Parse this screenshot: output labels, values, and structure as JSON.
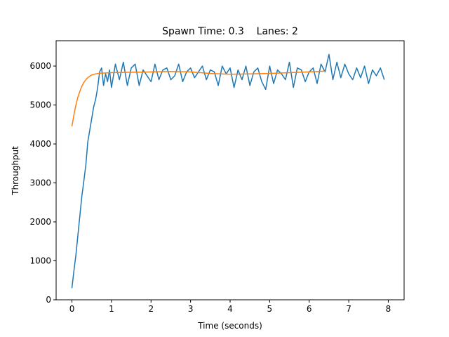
{
  "chart_data": {
    "type": "line",
    "title": "Spawn Time: 0.3    Lanes: 2",
    "xlabel": "Time (seconds)",
    "ylabel": "Throughput",
    "xlim": [
      -0.4,
      8.4
    ],
    "ylim": [
      0,
      6650
    ],
    "x_ticks": [
      0,
      1,
      2,
      3,
      4,
      5,
      6,
      7,
      8
    ],
    "x_tick_labels": [
      "0",
      "1",
      "2",
      "3",
      "4",
      "5",
      "6",
      "7",
      "8"
    ],
    "y_ticks": [
      0,
      1000,
      2000,
      3000,
      4000,
      5000,
      6000
    ],
    "y_tick_labels": [
      "0",
      "1000",
      "2000",
      "3000",
      "4000",
      "5000",
      "6000"
    ],
    "grid": false,
    "colors": {
      "throughput": "#1f77b4",
      "fit": "#ff7f0e"
    },
    "series": [
      {
        "key": "throughput",
        "x": [
          0.0,
          0.05,
          0.1,
          0.15,
          0.2,
          0.25,
          0.3,
          0.35,
          0.4,
          0.45,
          0.5,
          0.55,
          0.6,
          0.65,
          0.7,
          0.75,
          0.8,
          0.85,
          0.9,
          0.95,
          1.0,
          1.1,
          1.2,
          1.3,
          1.4,
          1.5,
          1.6,
          1.7,
          1.8,
          1.9,
          2.0,
          2.1,
          2.2,
          2.3,
          2.4,
          2.5,
          2.6,
          2.7,
          2.8,
          2.9,
          3.0,
          3.1,
          3.2,
          3.3,
          3.4,
          3.5,
          3.6,
          3.7,
          3.8,
          3.9,
          4.0,
          4.1,
          4.2,
          4.3,
          4.4,
          4.5,
          4.6,
          4.7,
          4.8,
          4.9,
          5.0,
          5.1,
          5.2,
          5.3,
          5.4,
          5.5,
          5.6,
          5.7,
          5.8,
          5.9,
          6.0,
          6.1,
          6.2,
          6.3,
          6.4,
          6.5,
          6.6,
          6.7,
          6.8,
          6.9,
          7.0,
          7.1,
          7.2,
          7.3,
          7.4,
          7.5,
          7.6,
          7.7,
          7.8,
          7.9
        ],
        "y": [
          300,
          750,
          1150,
          1650,
          2150,
          2650,
          3050,
          3450,
          4050,
          4350,
          4650,
          4950,
          5150,
          5450,
          5850,
          5950,
          5500,
          5800,
          5600,
          5900,
          5450,
          6050,
          5650,
          6100,
          5500,
          5950,
          6050,
          5500,
          5900,
          5750,
          5600,
          6050,
          5650,
          5900,
          5950,
          5650,
          5750,
          6050,
          5600,
          5850,
          5950,
          5700,
          5850,
          6000,
          5650,
          5900,
          5850,
          5500,
          6000,
          5800,
          5950,
          5450,
          5900,
          5650,
          6000,
          5500,
          5850,
          5950,
          5600,
          5400,
          6000,
          5550,
          5900,
          5800,
          5650,
          6100,
          5450,
          5950,
          5900,
          5600,
          5850,
          5950,
          5550,
          6050,
          5850,
          6300,
          5650,
          6100,
          5700,
          6050,
          5800,
          5650,
          5950,
          5700,
          6000,
          5550,
          5900,
          5750,
          5950,
          5650
        ]
      },
      {
        "key": "fit",
        "x": [
          0.0,
          0.05,
          0.1,
          0.15,
          0.2,
          0.25,
          0.3,
          0.35,
          0.4,
          0.45,
          0.5,
          0.6,
          0.7,
          0.8,
          0.9,
          1.0,
          1.2,
          1.5,
          1.8,
          2.0,
          2.5,
          3.0,
          3.5,
          4.0,
          4.5,
          5.0,
          5.5,
          6.0,
          6.4
        ],
        "y": [
          4450,
          4750,
          5000,
          5200,
          5350,
          5480,
          5580,
          5650,
          5700,
          5740,
          5770,
          5800,
          5815,
          5820,
          5825,
          5830,
          5835,
          5840,
          5845,
          5850,
          5860,
          5850,
          5810,
          5790,
          5800,
          5810,
          5830,
          5850,
          5870
        ]
      }
    ]
  }
}
